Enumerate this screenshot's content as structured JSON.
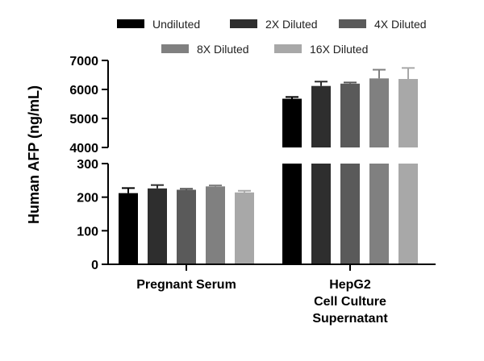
{
  "chart_data": {
    "type": "bar",
    "ylabel": "Human AFP (ng/mL)",
    "categories": [
      {
        "label_lines": [
          "Pregnant Serum"
        ]
      },
      {
        "label_lines": [
          "HepG2",
          "Cell Culture",
          "Supernatant"
        ]
      }
    ],
    "series": [
      {
        "name": "Undiluted",
        "color": "#000000",
        "values": [
          212,
          5680
        ],
        "errors": [
          15,
          60
        ]
      },
      {
        "name": "2X Diluted",
        "color": "#2e2e2e",
        "values": [
          226,
          6120
        ],
        "errors": [
          10,
          150
        ]
      },
      {
        "name": "4X Diluted",
        "color": "#5a5a5a",
        "values": [
          222,
          6200
        ],
        "errors": [
          3,
          40
        ]
      },
      {
        "name": "8X Diluted",
        "color": "#808080",
        "values": [
          232,
          6380
        ],
        "errors": [
          3,
          300
        ]
      },
      {
        "name": "16X Diluted",
        "color": "#a8a8a8",
        "values": [
          214,
          6360
        ],
        "errors": [
          5,
          380
        ]
      }
    ],
    "axis_segments": {
      "lower": {
        "ylim": [
          0,
          300
        ],
        "ticks": [
          0,
          100,
          200,
          300
        ]
      },
      "upper": {
        "ylim": [
          4000,
          7000
        ],
        "ticks": [
          4000,
          5000,
          6000,
          7000
        ]
      }
    },
    "legend_position": "top",
    "grid": false
  }
}
